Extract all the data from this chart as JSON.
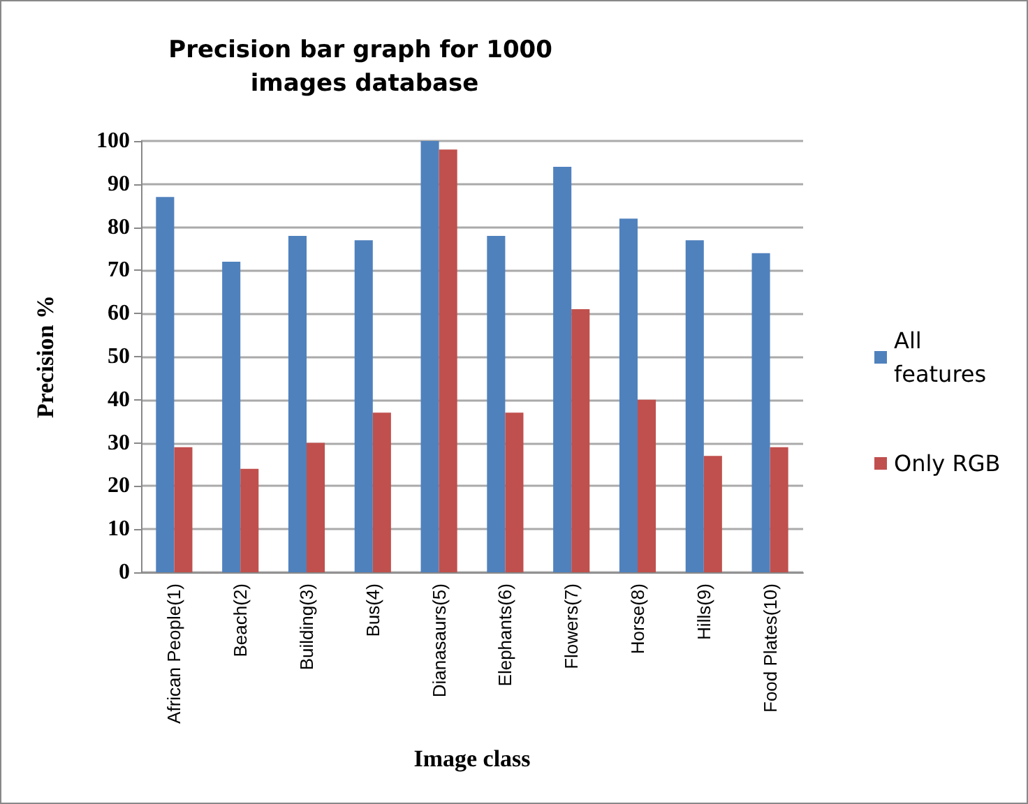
{
  "chart_data": {
    "type": "bar",
    "title": "Precision bar graph for 1000 images database",
    "xlabel": "Image class",
    "ylabel": "Precision %",
    "categories": [
      "African People(1)",
      "Beach(2)",
      "Building(3)",
      "Bus(4)",
      "Dianasaurs(5)",
      "Elephants(6)",
      "Flowers(7)",
      "Horse(8)",
      "Hills(9)",
      "Food Plates(10)"
    ],
    "series": [
      {
        "name": "All features",
        "color": "#4f81bd",
        "values": [
          87,
          72,
          78,
          77,
          100,
          78,
          94,
          82,
          77,
          74
        ]
      },
      {
        "name": "Only RGB",
        "color": "#c0504d",
        "values": [
          29,
          24,
          30,
          37,
          98,
          37,
          61,
          40,
          27,
          29
        ]
      }
    ],
    "ylim": [
      0,
      100
    ],
    "yticks": [
      0,
      10,
      20,
      30,
      40,
      50,
      60,
      70,
      80,
      90,
      100
    ],
    "grid": "y",
    "legend": "right"
  }
}
